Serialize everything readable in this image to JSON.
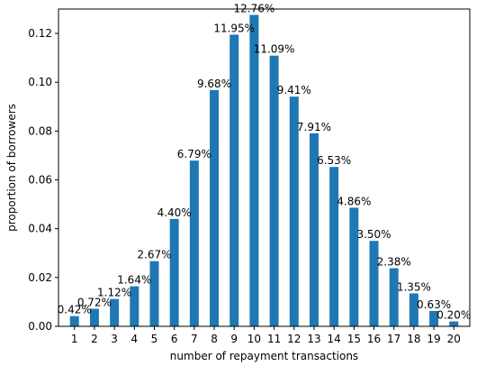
{
  "chart_data": {
    "type": "bar",
    "xlabel": "number of repayment transactions",
    "ylabel": "proportion of borrowers",
    "ylim": [
      0,
      0.13
    ],
    "yticks": [
      "0.00",
      "0.02",
      "0.04",
      "0.06",
      "0.08",
      "0.10",
      "0.12"
    ],
    "grid": false,
    "bar_color": "#1f77b4",
    "categories": [
      "1",
      "2",
      "3",
      "4",
      "5",
      "6",
      "7",
      "8",
      "9",
      "10",
      "11",
      "12",
      "13",
      "14",
      "15",
      "16",
      "17",
      "18",
      "19",
      "20"
    ],
    "values": [
      0.0042,
      0.0072,
      0.0112,
      0.0164,
      0.0267,
      0.044,
      0.0679,
      0.0968,
      0.1195,
      0.1276,
      0.1109,
      0.0941,
      0.0791,
      0.0653,
      0.0486,
      0.035,
      0.0238,
      0.0135,
      0.0063,
      0.002
    ],
    "data_labels": [
      "0.42%",
      "0.72%",
      "1.12%",
      "1.64%",
      "2.67%",
      "4.40%",
      "6.79%",
      "9.68%",
      "11.95%",
      "12.76%",
      "11.09%",
      "9.41%",
      "7.91%",
      "6.53%",
      "4.86%",
      "3.50%",
      "2.38%",
      "1.35%",
      "0.63%",
      "0.20%"
    ]
  }
}
